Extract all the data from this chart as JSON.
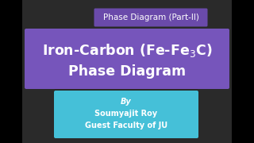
{
  "bg_color": "#2a2a2a",
  "left_bar_color": "#000000",
  "right_bar_color": "#000000",
  "title_box": {
    "text": "Phase Diagram (Part-II)",
    "bg_color": "#6a4aaa",
    "text_color": "#ffffff",
    "fontsize": 7.5
  },
  "main_box": {
    "line1": "Iron-Carbon (Fe-Fe$_3$C)",
    "line2": "Phase Diagram",
    "bg_color": "#7655bb",
    "text_color": "#ffffff",
    "fontsize": 12.5
  },
  "by_box": {
    "by_text": "By",
    "name_text": "Soumyajit Roy",
    "role_text": "Guest Faculty of JU",
    "bg_color": "#45c0d8",
    "text_color": "#ffffff",
    "fontsize": 7.0
  }
}
